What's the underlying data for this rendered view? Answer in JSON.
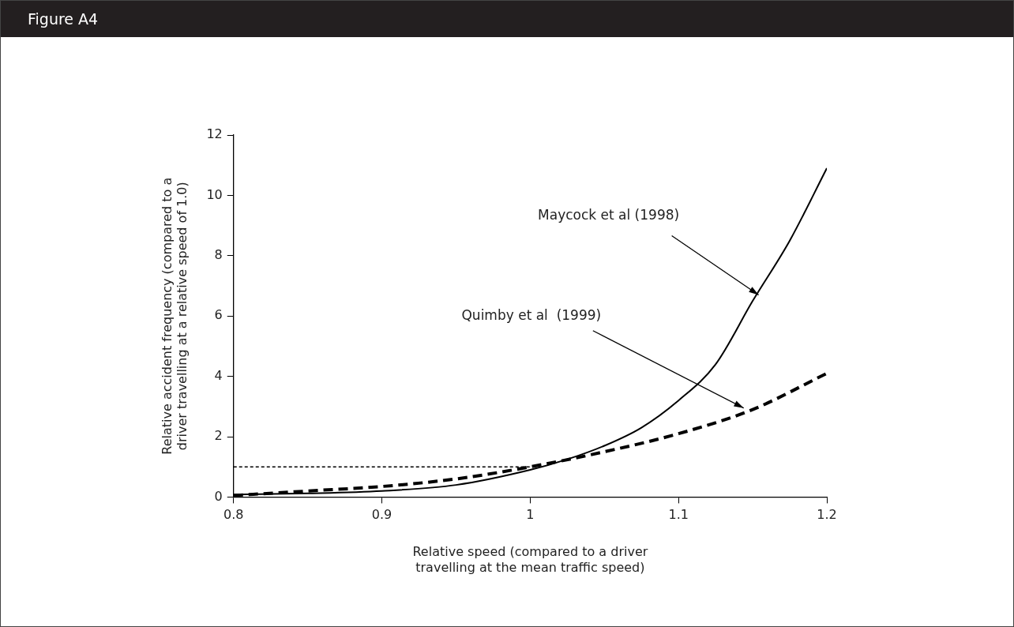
{
  "chart_data": {
    "type": "line",
    "title": "Figure A4",
    "xlabel": "Relative speed (compared to a driver\ntravelling at the mean traffic speed)",
    "ylabel": "Relative accident frequency (compared to a\ndriver travelling at a relative speed of 1.0)",
    "xlim": [
      0.8,
      1.2
    ],
    "xticks": [
      {
        "value": 0.8,
        "label": "0.8"
      },
      {
        "value": 0.9,
        "label": "0.9"
      },
      1,
      {
        "value": 1.1,
        "label": "1.1"
      },
      {
        "value": 1.2,
        "label": "1.2"
      }
    ],
    "ylim": [
      0,
      12
    ],
    "yticks": [
      0,
      2,
      4,
      6,
      8,
      10,
      12
    ],
    "series": [
      {
        "color": "#000000",
        "line_style": "solid",
        "x": [
          0.8,
          0.85,
          0.9,
          0.95,
          1.0,
          1.025,
          1.05,
          1.075,
          1.1,
          1.125,
          1.15,
          1.175,
          1.2
        ],
        "values": [
          0.08,
          0.12,
          0.2,
          0.4,
          0.9,
          1.25,
          1.7,
          2.3,
          3.2,
          4.4,
          6.5,
          8.5,
          10.9
        ]
      },
      {
        "color": "#000000",
        "line_style": "dashed",
        "x": [
          0.8,
          0.85,
          0.9,
          0.95,
          1.0,
          1.05,
          1.1,
          1.15,
          1.2
        ],
        "values": [
          0.05,
          0.2,
          0.35,
          0.6,
          1.0,
          1.5,
          2.1,
          2.9,
          4.1
        ]
      },
      {
        "color": "#000000",
        "line_style": "dotted",
        "x": [
          0.8,
          1.0
        ],
        "values": [
          1,
          1
        ]
      }
    ],
    "annotations": [
      {
        "text": "Maycock et al (1998)",
        "x": 1.154,
        "y": 6.7
      },
      {
        "text": "Quimby et al  (1999)",
        "x": 1.144,
        "y": 2.95
      }
    ],
    "grid": false,
    "legend": false,
    "marker": "none"
  }
}
